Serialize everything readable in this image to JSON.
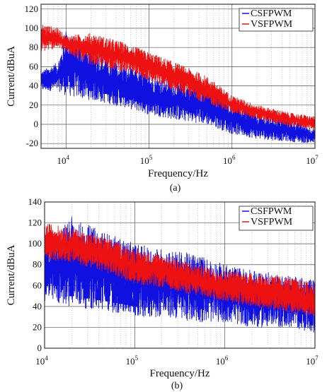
{
  "chart_data": [
    {
      "type": "line",
      "panel_label": "(a)",
      "xlabel": "Frequency/Hz",
      "ylabel": "Current/dBuA",
      "xscale": "log",
      "xlim": [
        5000,
        10000000
      ],
      "ylim": [
        -25,
        125
      ],
      "yticks": [
        -20,
        0,
        20,
        40,
        60,
        80,
        100,
        120
      ],
      "xticks": [
        {
          "value": 10000,
          "base": "10",
          "exp": "4"
        },
        {
          "value": 100000,
          "base": "10",
          "exp": "5"
        },
        {
          "value": 1000000,
          "base": "10",
          "exp": "6"
        },
        {
          "value": 10000000,
          "base": "10",
          "exp": "7"
        }
      ],
      "grid": true,
      "legend_position": "top-right",
      "series": [
        {
          "name": "CSFPWM",
          "color": "#1010e0",
          "envelope_freq": [
            5000,
            8000,
            10000,
            20000,
            50000,
            100000,
            200000,
            500000,
            1000000,
            2000000,
            5000000,
            10000000
          ],
          "envelope_upper": [
            55,
            65,
            95,
            78,
            60,
            52,
            45,
            38,
            25,
            10,
            5,
            -5
          ],
          "envelope_lower": [
            35,
            35,
            30,
            25,
            18,
            10,
            5,
            0,
            -10,
            -15,
            -18,
            -20
          ],
          "peaks": [
            {
              "freq": 10000,
              "value": 95
            },
            {
              "freq": 20000,
              "value": 78
            },
            {
              "freq": 30000,
              "value": 70
            },
            {
              "freq": 40000,
              "value": 65
            },
            {
              "freq": 50000,
              "value": 60
            },
            {
              "freq": 60000,
              "value": 57
            },
            {
              "freq": 70000,
              "value": 55
            },
            {
              "freq": 80000,
              "value": 52
            },
            {
              "freq": 90000,
              "value": 50
            },
            {
              "freq": 100000,
              "value": 48
            }
          ]
        },
        {
          "name": "VSFPWM",
          "color": "#ee1111",
          "envelope_freq": [
            5000,
            8000,
            10000,
            20000,
            50000,
            100000,
            200000,
            500000,
            1000000,
            2000000,
            5000000,
            10000000
          ],
          "envelope_upper": [
            105,
            100,
            92,
            95,
            85,
            75,
            65,
            50,
            30,
            20,
            12,
            8
          ],
          "envelope_lower": [
            75,
            80,
            75,
            62,
            55,
            45,
            35,
            22,
            12,
            5,
            -2,
            -5
          ]
        }
      ]
    },
    {
      "type": "line",
      "panel_label": "(b)",
      "xlabel": "Frequency/Hz",
      "ylabel": "Current/dBuA",
      "xscale": "log",
      "xlim": [
        10000,
        10000000
      ],
      "ylim": [
        0,
        140
      ],
      "yticks": [
        0,
        20,
        40,
        60,
        80,
        100,
        120,
        140
      ],
      "xticks": [
        {
          "value": 10000,
          "base": "10",
          "exp": "4"
        },
        {
          "value": 100000,
          "base": "10",
          "exp": "5"
        },
        {
          "value": 1000000,
          "base": "10",
          "exp": "6"
        },
        {
          "value": 10000000,
          "base": "10",
          "exp": "7"
        }
      ],
      "grid": true,
      "legend_position": "top-right",
      "series": [
        {
          "name": "CSFPWM",
          "color": "#1010e0",
          "envelope_freq": [
            10000,
            20000,
            50000,
            100000,
            200000,
            500000,
            1000000,
            2000000,
            5000000,
            10000000
          ],
          "envelope_upper": [
            100,
            125,
            110,
            100,
            95,
            90,
            80,
            75,
            70,
            65
          ],
          "envelope_lower": [
            45,
            40,
            35,
            30,
            30,
            25,
            25,
            20,
            20,
            15
          ],
          "peaks": [
            {
              "freq": 20000,
              "value": 125
            },
            {
              "freq": 30000,
              "value": 85
            },
            {
              "freq": 40000,
              "value": 80
            },
            {
              "freq": 50000,
              "value": 78
            },
            {
              "freq": 60000,
              "value": 76
            },
            {
              "freq": 70000,
              "value": 75
            },
            {
              "freq": 80000,
              "value": 73
            },
            {
              "freq": 90000,
              "value": 72
            },
            {
              "freq": 100000,
              "value": 70
            }
          ]
        },
        {
          "name": "VSFPWM",
          "color": "#ee1111",
          "envelope_freq": [
            10000,
            20000,
            50000,
            100000,
            200000,
            500000,
            1000000,
            2000000,
            5000000,
            10000000
          ],
          "envelope_upper": [
            120,
            115,
            105,
            95,
            90,
            80,
            75,
            72,
            68,
            62
          ],
          "envelope_lower": [
            85,
            82,
            72,
            62,
            58,
            50,
            45,
            40,
            35,
            30
          ]
        }
      ]
    }
  ]
}
